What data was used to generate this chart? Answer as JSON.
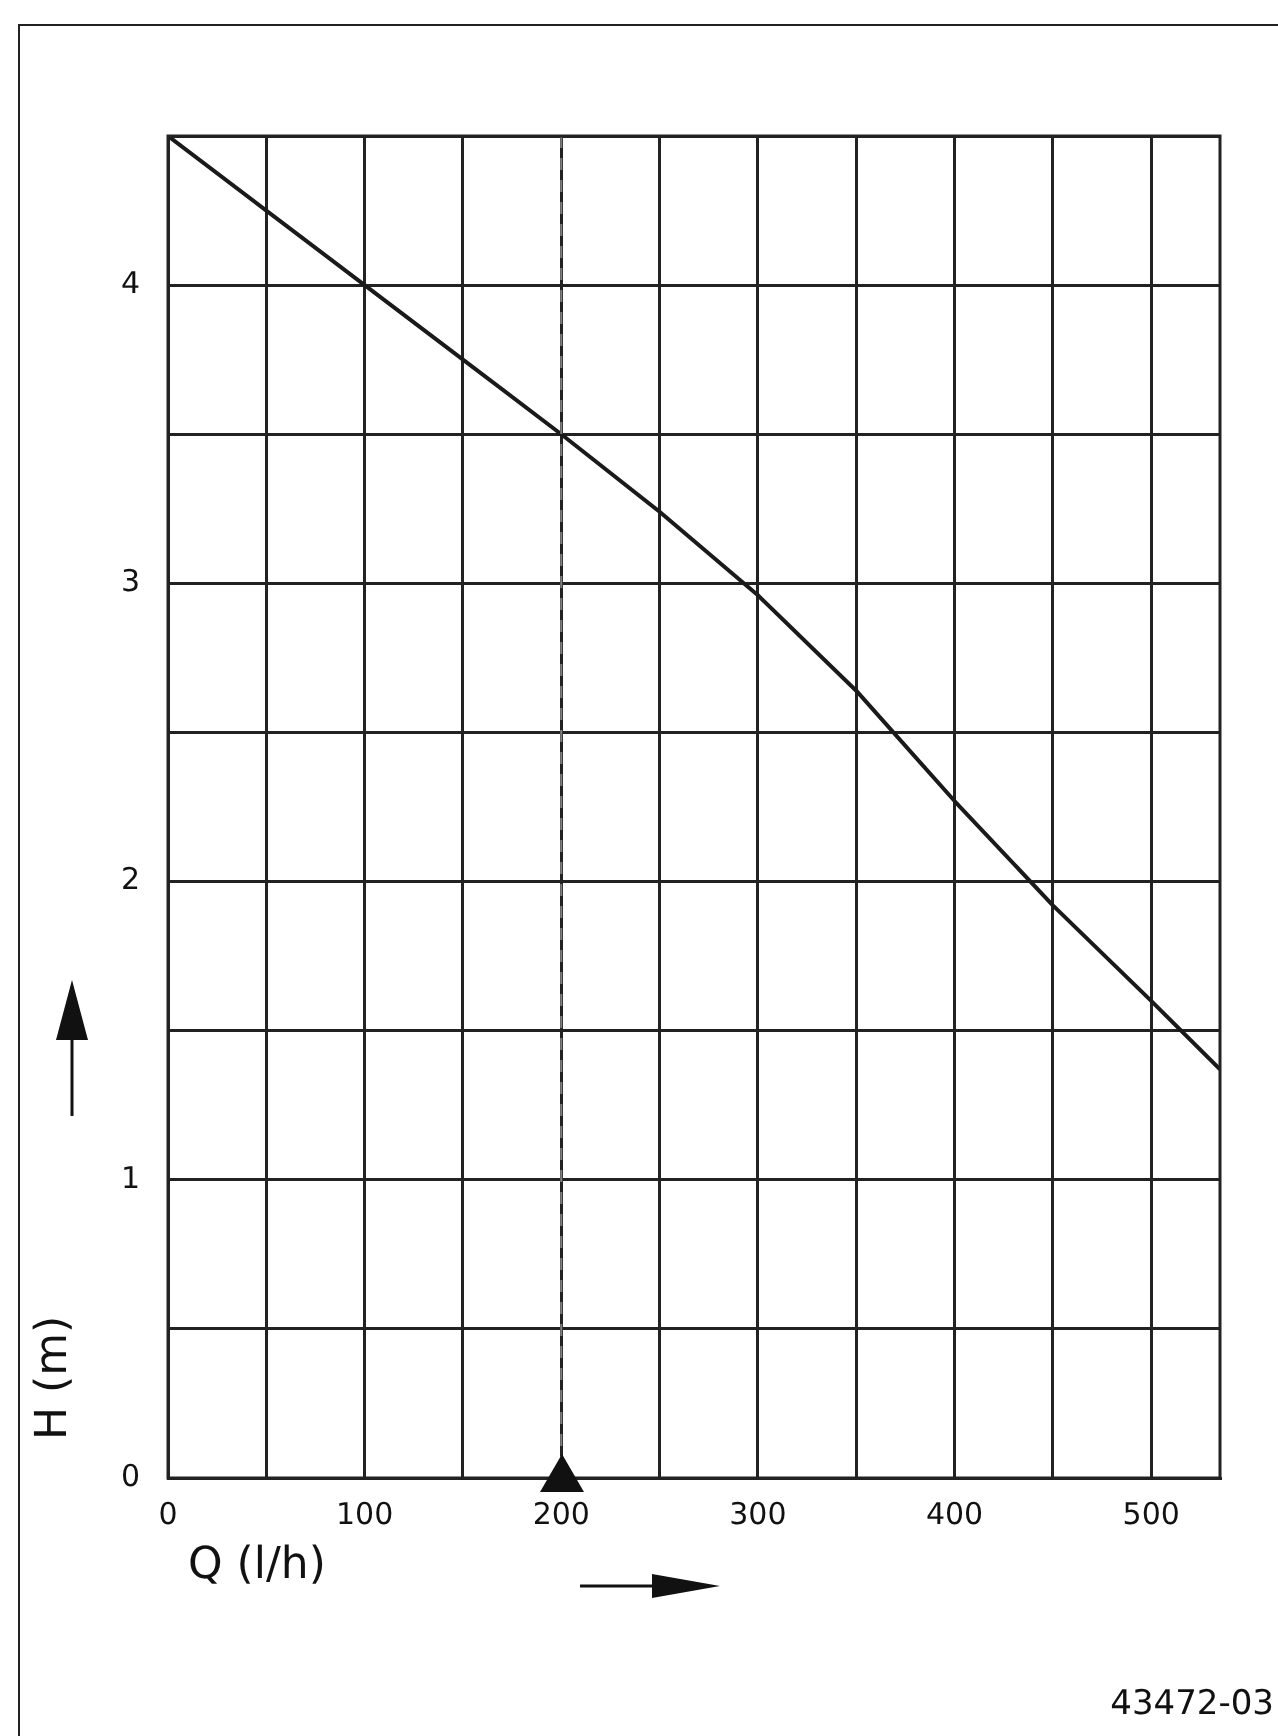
{
  "chart_data": {
    "type": "line",
    "xlabel": "Q (l/h)",
    "ylabel": "H (m)",
    "x": [
      0,
      50,
      100,
      150,
      200,
      250,
      300,
      350,
      400,
      450,
      500,
      535
    ],
    "series": [
      {
        "color": "#1a1a1a",
        "values": [
          4.5,
          4.25,
          4.0,
          3.75,
          3.5,
          3.24,
          2.96,
          2.64,
          2.27,
          1.92,
          1.6,
          1.37
        ]
      }
    ],
    "xlim": [
      0,
      535
    ],
    "xticks": [
      0,
      {
        "value": 50,
        "label": null
      },
      100,
      {
        "value": 150,
        "label": null
      },
      200,
      {
        "value": 250,
        "label": null
      },
      300,
      {
        "value": 350,
        "label": null
      },
      400,
      {
        "value": 450,
        "label": null
      },
      500
    ],
    "ylim": [
      0,
      4.5
    ],
    "yticks": [
      0,
      {
        "value": 0.5,
        "label": null
      },
      1,
      {
        "value": 1.5,
        "label": null
      },
      2,
      {
        "value": 2.5,
        "label": null
      },
      3,
      {
        "value": 3.5,
        "label": null
      },
      4,
      {
        "value": 4.5,
        "label": null
      }
    ],
    "grid": true,
    "legend": false,
    "marker": "none",
    "line_style": "solid",
    "ref_lines": [
      {
        "axis": "x",
        "value": 200,
        "color": "#808080",
        "line_style": "dashed"
      }
    ],
    "annotations": [
      "43472-03"
    ]
  }
}
